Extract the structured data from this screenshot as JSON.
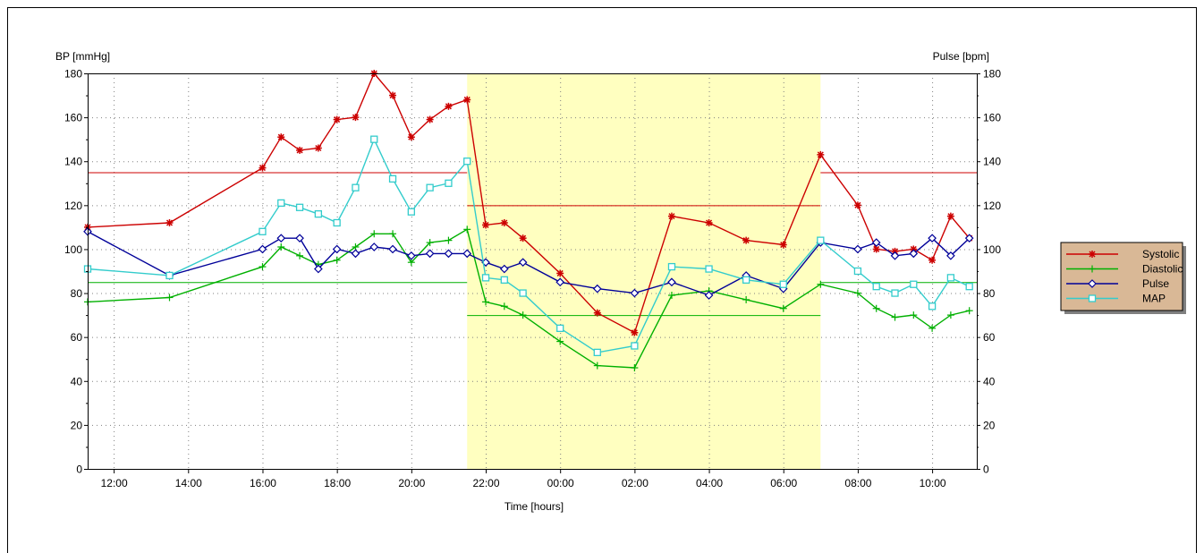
{
  "chart_data": {
    "type": "line",
    "left_axis_label": "BP [mmHg]",
    "right_axis_label": "Pulse [bpm]",
    "xlabel": "Time [hours]",
    "ylim": [
      0,
      180
    ],
    "y_ticks": [
      0,
      20,
      40,
      60,
      80,
      100,
      120,
      140,
      160,
      180
    ],
    "y_tick_labels": [
      "0",
      "20",
      "40",
      "60",
      "80",
      "100",
      "120",
      "140",
      "160",
      "180"
    ],
    "x_range_hours": [
      11.3,
      35.2
    ],
    "x_ticks": [
      12,
      14,
      16,
      18,
      20,
      22,
      24,
      26,
      28,
      30,
      32,
      34
    ],
    "x_tick_labels": [
      "12:00",
      "14:00",
      "16:00",
      "18:00",
      "20:00",
      "22:00",
      "00:00",
      "02:00",
      "04:00",
      "06:00",
      "08:00",
      "10:00"
    ],
    "grid": true,
    "night_period": {
      "start": 21.5,
      "end": 31.0,
      "color": "#ffffc0"
    },
    "thresholds": [
      {
        "series": "Systolic",
        "day": 135,
        "night": 120,
        "color": "#cc0000"
      },
      {
        "series": "Diastolic",
        "day": 85,
        "night": 70,
        "color": "#00b000"
      }
    ],
    "x": [
      11.3,
      13.5,
      16.0,
      16.5,
      17.0,
      17.5,
      18.0,
      18.5,
      19.0,
      19.5,
      20.0,
      20.5,
      21.0,
      21.5,
      22.0,
      22.5,
      23.0,
      24.0,
      25.0,
      26.0,
      27.0,
      28.0,
      29.0,
      30.0,
      31.0,
      32.0,
      32.5,
      33.0,
      33.5,
      34.0,
      34.5,
      35.0
    ],
    "series": [
      {
        "name": "Systolic",
        "color": "#cc0000",
        "marker": "star",
        "values": [
          110,
          112,
          137,
          151,
          145,
          146,
          159,
          160,
          180,
          170,
          151,
          159,
          165,
          168,
          111,
          112,
          105,
          89,
          71,
          62,
          115,
          112,
          104,
          102,
          143,
          120,
          100,
          99,
          100,
          95,
          115,
          105
        ]
      },
      {
        "name": "Diastolic",
        "color": "#00b000",
        "marker": "plus",
        "values": [
          76,
          78,
          92,
          101,
          97,
          93,
          95,
          101,
          107,
          107,
          94,
          103,
          104,
          109,
          76,
          74,
          70,
          58,
          47,
          46,
          79,
          81,
          77,
          73,
          84,
          80,
          73,
          69,
          70,
          64,
          70,
          72
        ]
      },
      {
        "name": "Pulse",
        "color": "#000099",
        "marker": "diamond",
        "values": [
          108,
          88,
          100,
          105,
          105,
          91,
          100,
          98,
          101,
          100,
          97,
          98,
          98,
          98,
          94,
          91,
          94,
          85,
          82,
          80,
          85,
          79,
          88,
          82,
          103,
          100,
          103,
          97,
          98,
          105,
          97,
          105
        ]
      },
      {
        "name": "MAP",
        "color": "#33cccc",
        "marker": "square",
        "values": [
          91,
          88,
          108,
          121,
          119,
          116,
          112,
          128,
          150,
          132,
          117,
          128,
          130,
          140,
          87,
          86,
          80,
          64,
          53,
          56,
          92,
          91,
          86,
          84,
          104,
          90,
          83,
          80,
          84,
          74,
          87,
          83
        ]
      }
    ],
    "legend": {
      "placement": "right",
      "background": "#d9b896",
      "entries": [
        "Systolic",
        "Diastolic",
        "Pulse",
        "MAP"
      ]
    }
  }
}
